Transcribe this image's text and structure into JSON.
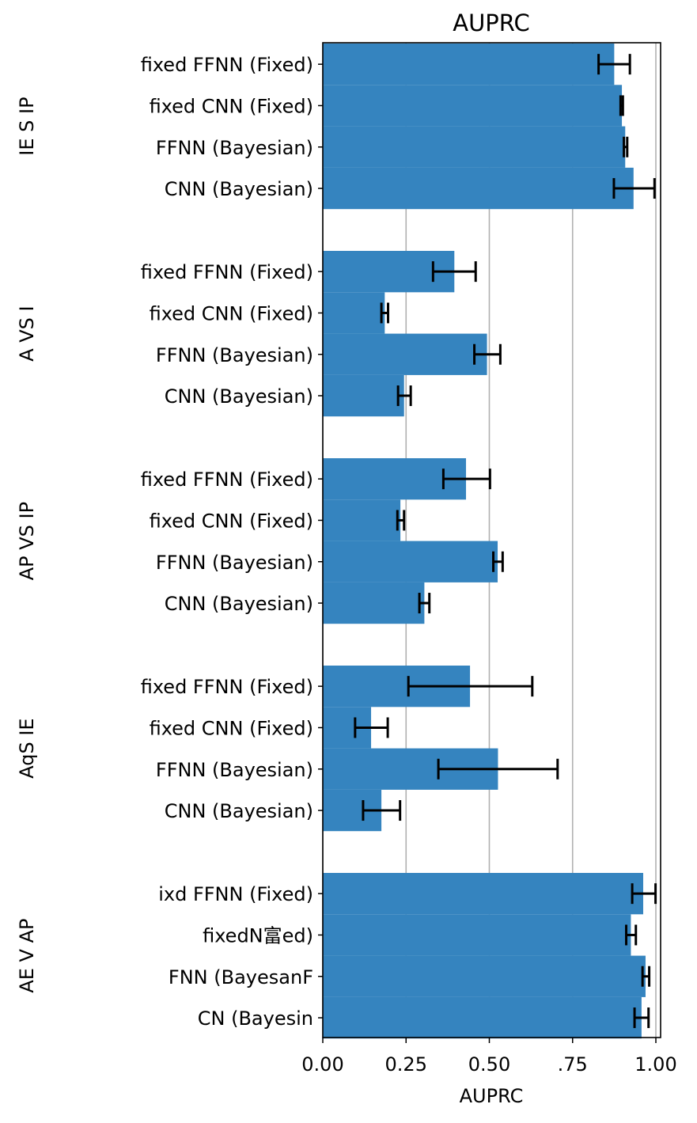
{
  "chart_data": {
    "type": "bar",
    "orientation": "horizontal",
    "title": "AUPRC",
    "xlabel": "AUPRC",
    "xlim": [
      0.0,
      1.0
    ],
    "x_ticks": [
      0.0,
      0.25,
      0.5,
      0.75,
      1.0
    ],
    "x_tick_labels": [
      "0.00",
      "0.25",
      "0.50",
      ".75",
      "1.00"
    ],
    "grid": "vertical",
    "bar_color": "#3584bf",
    "groups": [
      {
        "name": "IE  S IP",
        "bars": [
          {
            "label": "fixed FFNN (Fixed)",
            "value": 0.875,
            "err_low": 0.828,
            "err_high": 0.922
          },
          {
            "label": "fixed CNN (Fixed)",
            "value": 0.898,
            "err_low": 0.894,
            "err_high": 0.901
          },
          {
            "label": "FFNN (Bayesian)",
            "value": 0.908,
            "err_low": 0.904,
            "err_high": 0.914
          },
          {
            "label": "CNN (Bayesian)",
            "value": 0.933,
            "err_low": 0.874,
            "err_high": 0.996
          }
        ]
      },
      {
        "name": "A VS I",
        "bars": [
          {
            "label": "fixed FFNN (Fixed)",
            "value": 0.395,
            "err_low": 0.331,
            "err_high": 0.459
          },
          {
            "label": "fixed CNN (Fixed)",
            "value": 0.186,
            "err_low": 0.176,
            "err_high": 0.196
          },
          {
            "label": "FFNN (Bayesian)",
            "value": 0.493,
            "err_low": 0.455,
            "err_high": 0.533
          },
          {
            "label": "CNN (Bayesian)",
            "value": 0.244,
            "err_low": 0.226,
            "err_high": 0.264
          }
        ]
      },
      {
        "name": "AP VS IP",
        "bars": [
          {
            "label": "fixed FFNN (Fixed)",
            "value": 0.43,
            "err_low": 0.362,
            "err_high": 0.502
          },
          {
            "label": "fixed CNN (Fixed)",
            "value": 0.233,
            "err_low": 0.224,
            "err_high": 0.244
          },
          {
            "label": "FFNN (Bayesian)",
            "value": 0.525,
            "err_low": 0.512,
            "err_high": 0.54
          },
          {
            "label": "CNN (Bayesian)",
            "value": 0.305,
            "err_low": 0.29,
            "err_high": 0.32
          }
        ]
      },
      {
        "name": "AqS IE",
        "bars": [
          {
            "label": "fixed FFNN (Fixed)",
            "value": 0.442,
            "err_low": 0.257,
            "err_high": 0.629
          },
          {
            "label": "fixed CNN (Fixed)",
            "value": 0.145,
            "err_low": 0.097,
            "err_high": 0.195
          },
          {
            "label": "FFNN (Bayesian)",
            "value": 0.526,
            "err_low": 0.347,
            "err_high": 0.705
          },
          {
            "label": "CNN (Bayesian)",
            "value": 0.176,
            "err_low": 0.121,
            "err_high": 0.232
          }
        ]
      },
      {
        "name": "AE V AP",
        "bars": [
          {
            "label": "ixd FFNN (Fixed)",
            "value": 0.962,
            "err_low": 0.929,
            "err_high": 0.999
          },
          {
            "label": "fixedN富ed)",
            "value": 0.925,
            "err_low": 0.911,
            "err_high": 0.94
          },
          {
            "label": "FNN (BayesanF",
            "value": 0.969,
            "err_low": 0.96,
            "err_high": 0.98
          },
          {
            "label": "CN (Bayesin",
            "value": 0.957,
            "err_low": 0.936,
            "err_high": 0.978
          }
        ]
      }
    ]
  }
}
